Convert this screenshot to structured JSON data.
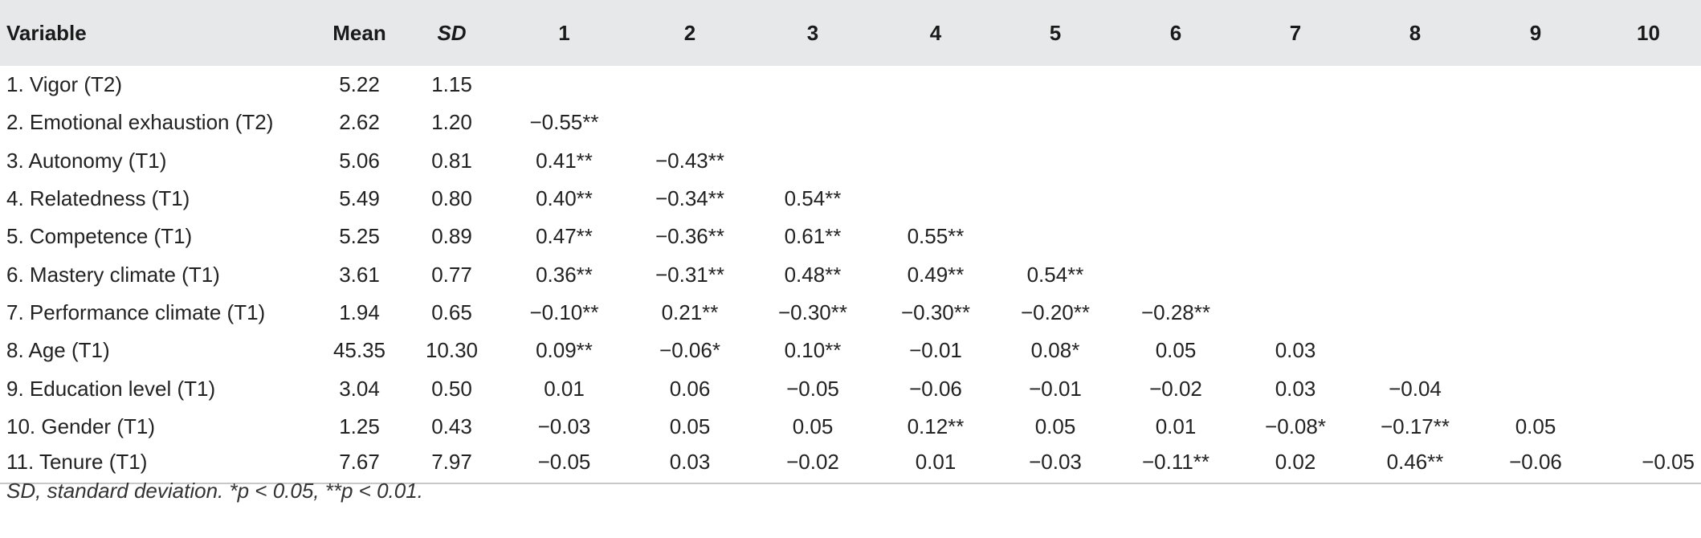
{
  "headers": [
    "Variable",
    "Mean",
    "SD",
    "1",
    "2",
    "3",
    "4",
    "5",
    "6",
    "7",
    "8",
    "9",
    "10"
  ],
  "rows": [
    [
      "1. Vigor (T2)",
      "5.22",
      "1.15",
      "",
      "",
      "",
      "",
      "",
      "",
      "",
      "",
      "",
      ""
    ],
    [
      "2. Emotional exhaustion (T2)",
      "2.62",
      "1.20",
      "−0.55**",
      "",
      "",
      "",
      "",
      "",
      "",
      "",
      "",
      ""
    ],
    [
      "3. Autonomy (T1)",
      "5.06",
      "0.81",
      "0.41**",
      "−0.43**",
      "",
      "",
      "",
      "",
      "",
      "",
      "",
      ""
    ],
    [
      "4. Relatedness (T1)",
      "5.49",
      "0.80",
      "0.40**",
      "−0.34**",
      "0.54**",
      "",
      "",
      "",
      "",
      "",
      "",
      ""
    ],
    [
      "5. Competence (T1)",
      "5.25",
      "0.89",
      "0.47**",
      "−0.36**",
      "0.61**",
      "0.55**",
      "",
      "",
      "",
      "",
      "",
      ""
    ],
    [
      "6. Mastery climate (T1)",
      "3.61",
      "0.77",
      "0.36**",
      "−0.31**",
      "0.48**",
      "0.49**",
      "0.54**",
      "",
      "",
      "",
      "",
      ""
    ],
    [
      "7. Performance climate (T1)",
      "1.94",
      "0.65",
      "−0.10**",
      "0.21**",
      "−0.30**",
      "−0.30**",
      "−0.20**",
      "−0.28**",
      "",
      "",
      "",
      ""
    ],
    [
      "8. Age (T1)",
      "45.35",
      "10.30",
      "0.09**",
      "−0.06*",
      "0.10**",
      "−0.01",
      "0.08*",
      "0.05",
      "0.03",
      "",
      "",
      ""
    ],
    [
      "9. Education level (T1)",
      "3.04",
      "0.50",
      "0.01",
      "0.06",
      "−0.05",
      "−0.06",
      "−0.01",
      "−0.02",
      "0.03",
      "−0.04",
      "",
      ""
    ],
    [
      "10. Gender (T1)",
      "1.25",
      "0.43",
      "−0.03",
      "0.05",
      "0.05",
      "0.12**",
      "0.05",
      "0.01",
      "−0.08*",
      "−0.17**",
      "0.05",
      ""
    ],
    [
      "11. Tenure (T1)",
      "7.67",
      "7.97",
      "−0.05",
      "0.03",
      "−0.02",
      "0.01",
      "−0.03",
      "−0.11**",
      "0.02",
      "0.46**",
      "−0.06",
      "−0.05"
    ]
  ],
  "footnote": "SD, standard deviation. *p < 0.05, **p < 0.01."
}
